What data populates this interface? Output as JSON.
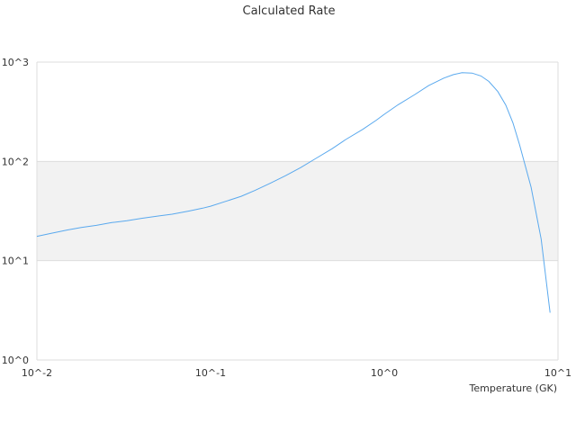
{
  "chart_data": {
    "type": "line",
    "title": "Calculated Rate",
    "xlabel": "Temperature (GK)",
    "ylabel": "",
    "x_scale": "log",
    "y_scale": "log",
    "xlim": [
      0.01,
      10
    ],
    "ylim": [
      1,
      1000
    ],
    "x_tick_labels": [
      "10^-2",
      "10^-1",
      "10^0",
      "10^1"
    ],
    "y_tick_labels": [
      "10^0",
      "10^1",
      "10^2",
      "10^3"
    ],
    "grid": true,
    "legend": "none",
    "colors": {
      "line": "#5aa9ee",
      "band": "#f2f2f2",
      "grid": "#dddddd",
      "text": "#333333"
    },
    "series": [
      {
        "x": [
          0.01,
          0.012,
          0.015,
          0.018,
          0.022,
          0.027,
          0.033,
          0.04,
          0.05,
          0.06,
          0.075,
          0.09,
          0.1,
          0.12,
          0.15,
          0.18,
          0.22,
          0.27,
          0.33,
          0.4,
          0.5,
          0.6,
          0.75,
          0.9,
          1.0,
          1.2,
          1.5,
          1.8,
          2.2,
          2.5,
          2.8,
          3.2,
          3.6,
          4.0,
          4.5,
          5.0,
          5.5,
          6.0,
          7.0,
          8.0,
          9.0
        ],
        "values": [
          17.6,
          18.8,
          20.4,
          21.6,
          22.7,
          24.2,
          25.3,
          26.7,
          28.2,
          29.4,
          31.6,
          33.8,
          35.4,
          39.2,
          44.5,
          51.0,
          60.2,
          71.8,
          86.6,
          106.0,
          134.0,
          166.0,
          210.0,
          260.0,
          298.0,
          372.0,
          472.0,
          580.0,
          690.0,
          748.0,
          782.0,
          775.0,
          725.0,
          638.0,
          505.0,
          370.0,
          245.0,
          148.0,
          55.0,
          16.5,
          3.0
        ]
      }
    ]
  }
}
